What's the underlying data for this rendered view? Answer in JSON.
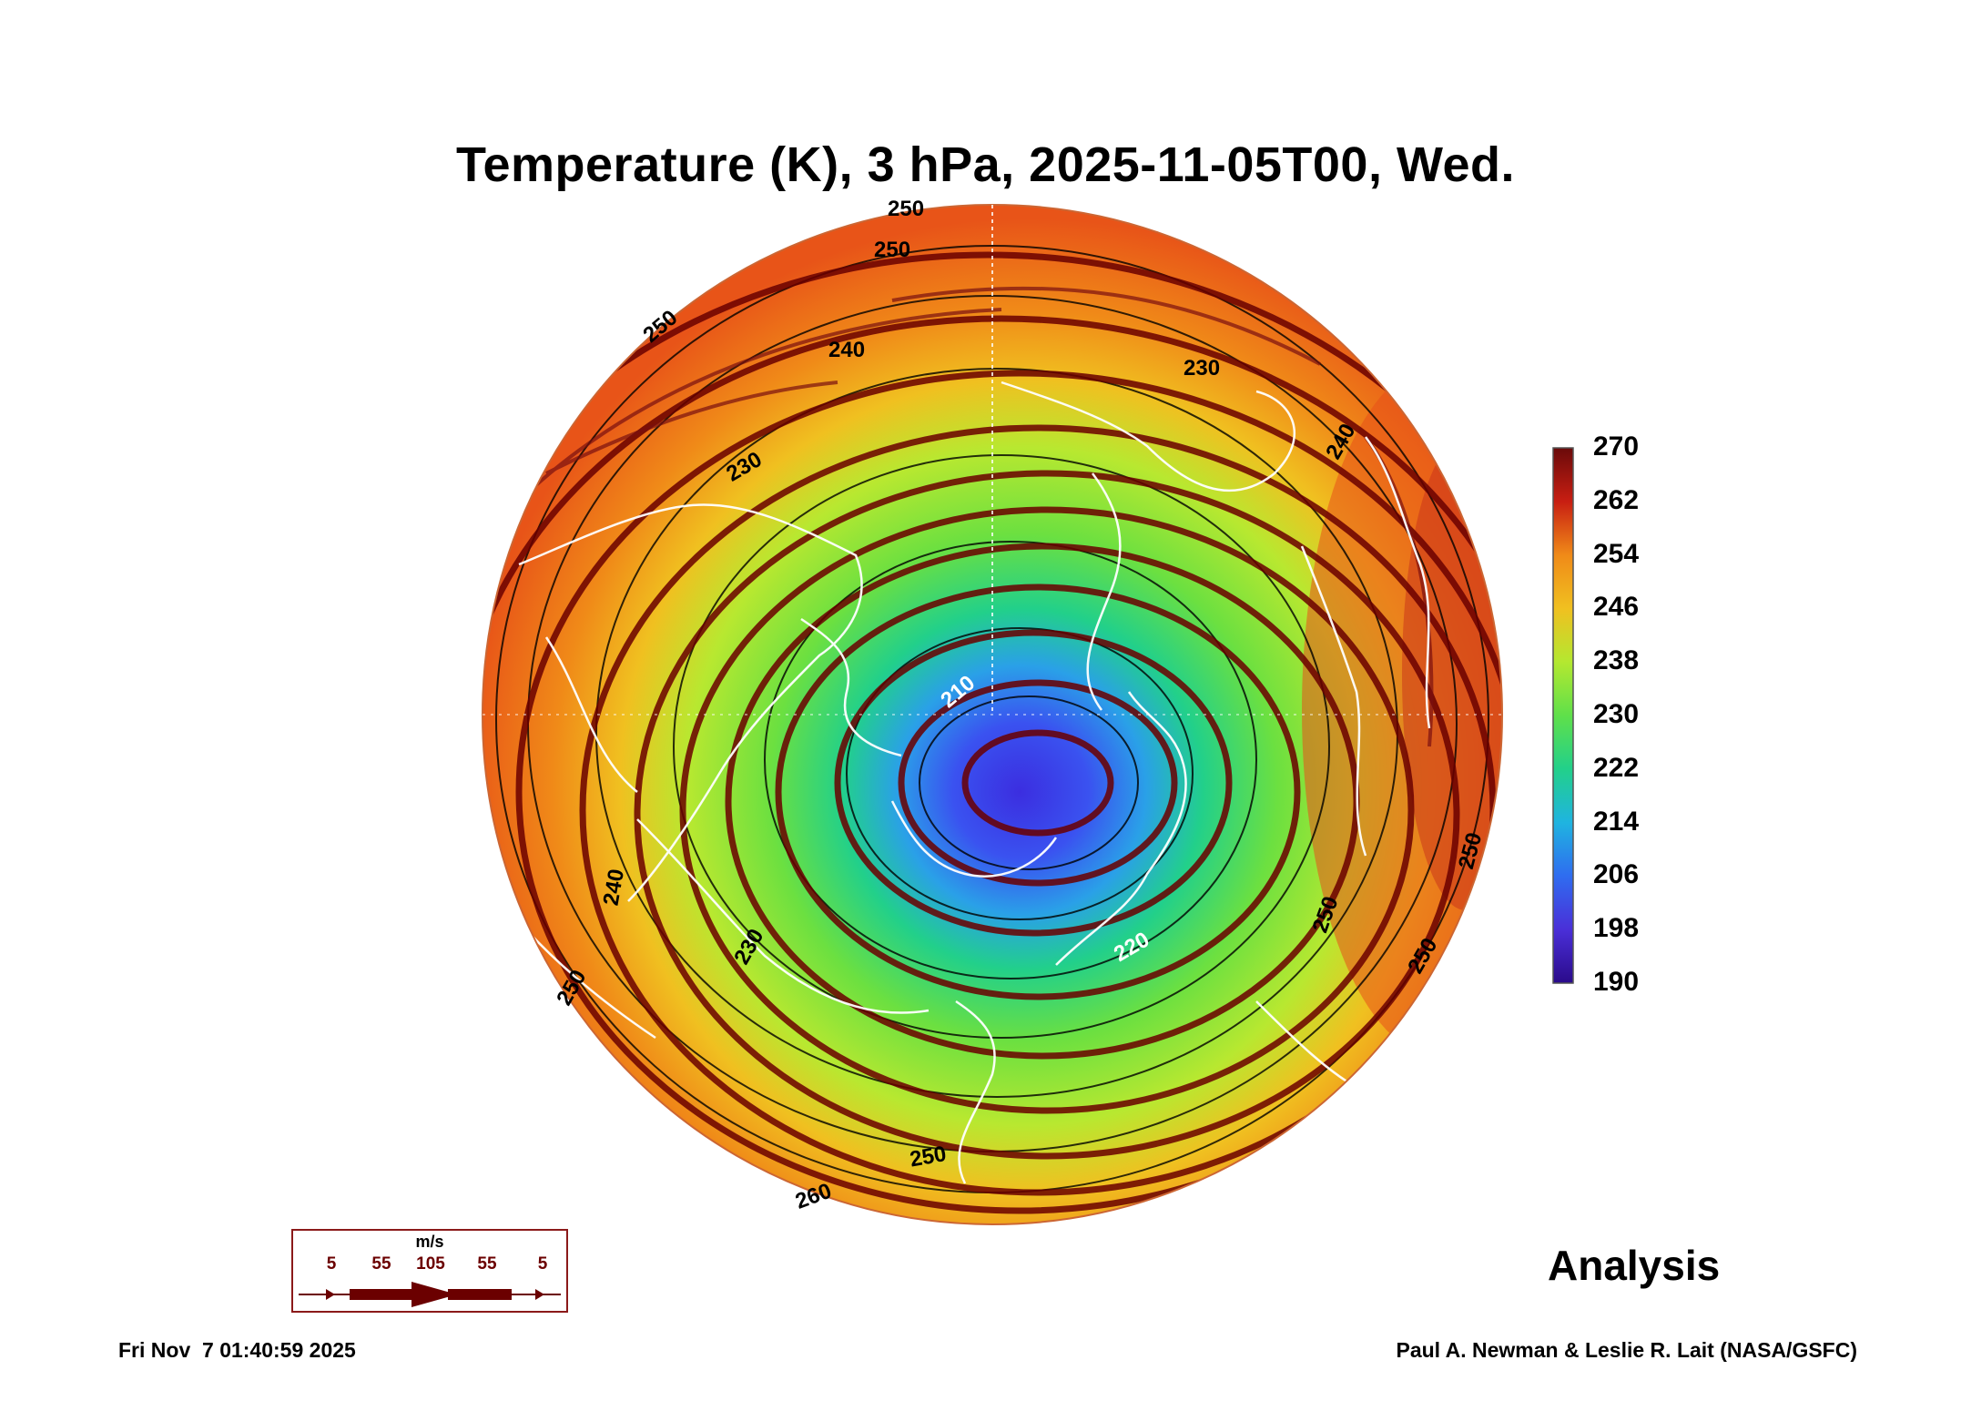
{
  "title": "Temperature (K), 3 hPa, 2025-11-05T00, Wed.",
  "colorbar": {
    "ticks": [
      "270",
      "262",
      "254",
      "246",
      "238",
      "230",
      "222",
      "214",
      "206",
      "198",
      "190"
    ],
    "min": 190,
    "max": 270,
    "colors": [
      "#2a0a8a",
      "#4a2fd8",
      "#2f6cf0",
      "#1fb4e0",
      "#22d08a",
      "#5fe04a",
      "#b4e830",
      "#f0c020",
      "#f08a18",
      "#e8501a",
      "#c81e12",
      "#6a0a0a"
    ]
  },
  "contour_labels": {
    "c250_top": "250",
    "c250_b": "250",
    "c250_left": "250",
    "c240_top": "240",
    "c230_ne": "230",
    "c240_ne": "240",
    "c230_w": "230",
    "c210_center": "210",
    "c220_se": "220",
    "c230_sw": "230",
    "c240_w": "240",
    "c250_sw": "250",
    "c250_e": "250",
    "c250_e2": "250",
    "c250_s": "250",
    "c260_s": "260",
    "c250_se": "250"
  },
  "wind_legend": {
    "unit": "m/s",
    "labels": [
      "5",
      "55",
      "105",
      "55",
      "5"
    ]
  },
  "analysis_label": "Analysis",
  "timestamp": "Fri Nov  7 01:40:59 2025",
  "credit": "Paul A. Newman & Leslie R. Lait (NASA/GSFC)"
}
